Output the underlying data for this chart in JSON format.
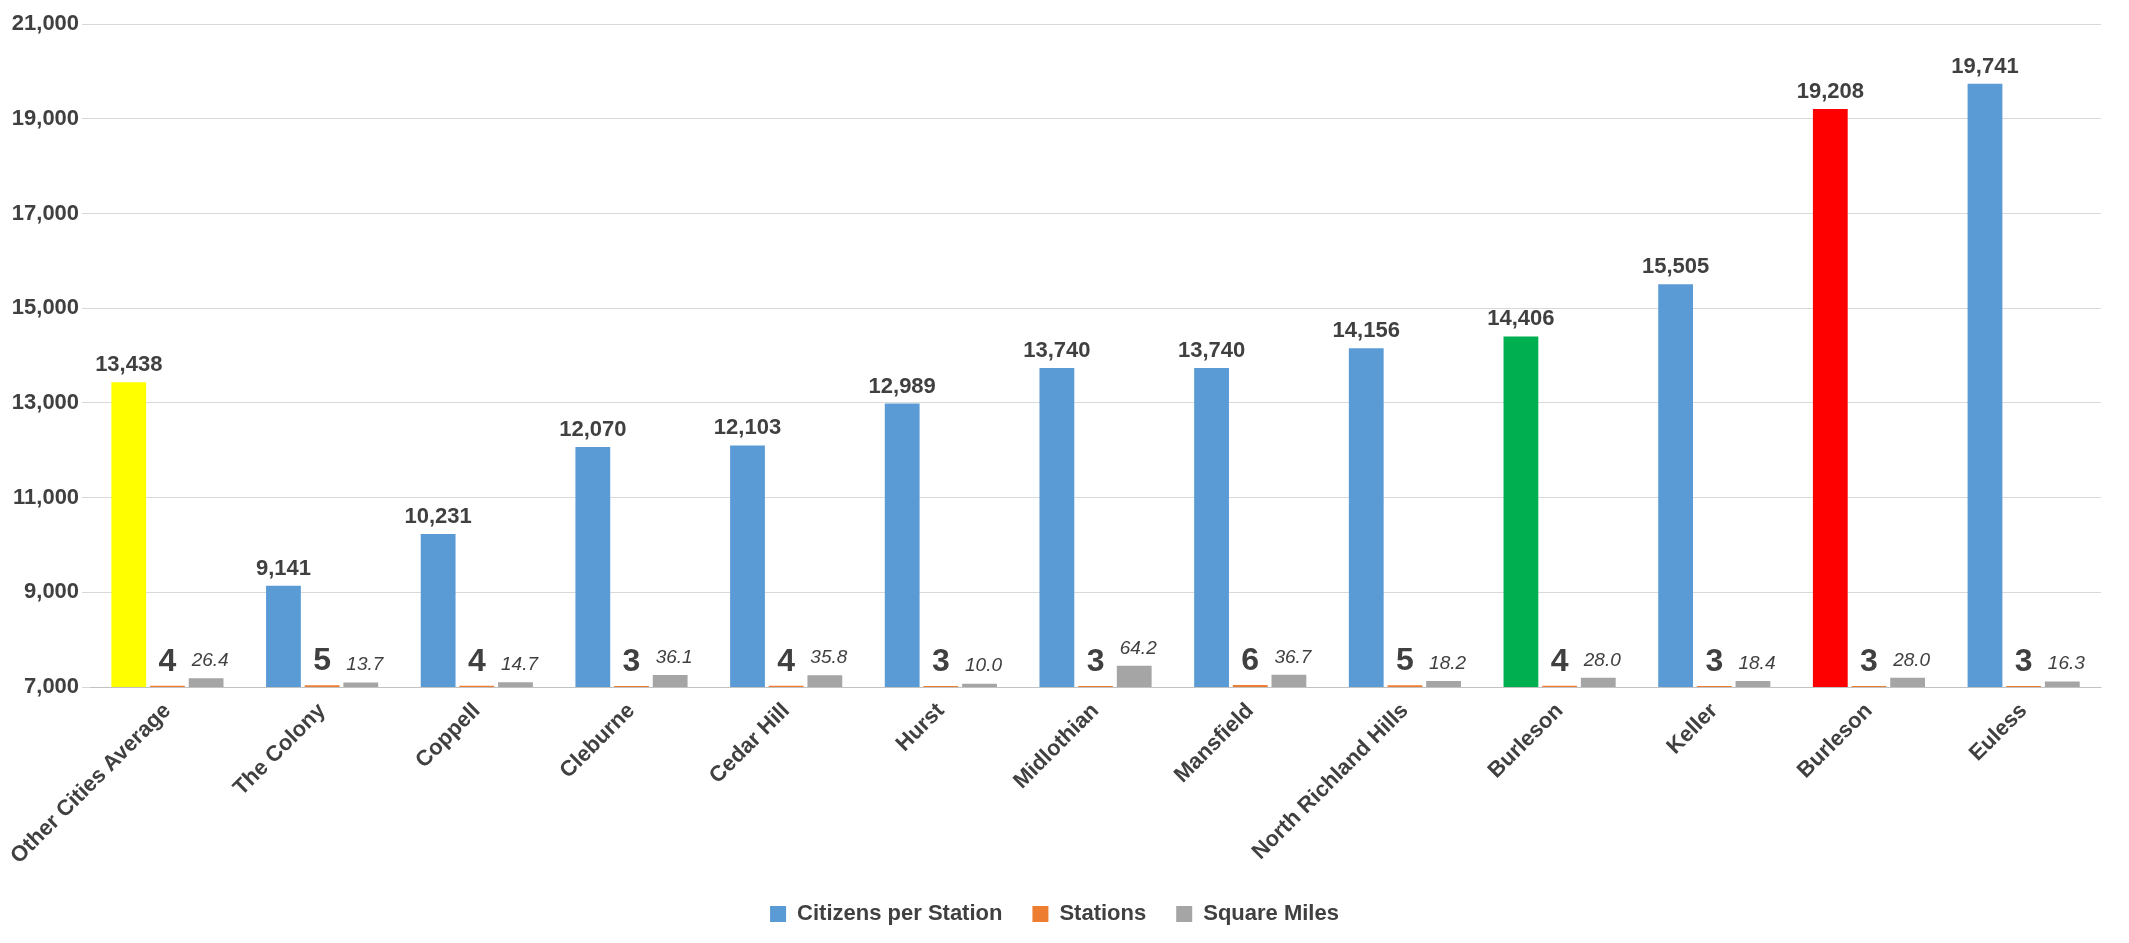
{
  "chart_data": {
    "type": "bar",
    "categories": [
      "Other Cities Average",
      "The Colony",
      "Coppell",
      "Cleburne",
      "Cedar Hill",
      "Hurst",
      "Midlothian",
      "Mansfield",
      "North Richland Hills",
      "Burleson",
      "Keller",
      "Burleson",
      "Euless"
    ],
    "series": [
      {
        "name": "Citizens per Station",
        "color": "#5b9bd5",
        "colors": [
          "#ffff00",
          "#5b9bd5",
          "#5b9bd5",
          "#5b9bd5",
          "#5b9bd5",
          "#5b9bd5",
          "#5b9bd5",
          "#5b9bd5",
          "#5b9bd5",
          "#00b050",
          "#5b9bd5",
          "#ff0000",
          "#5b9bd5"
        ],
        "values": [
          13438,
          9141,
          10231,
          12070,
          12103,
          12989,
          13740,
          13740,
          14156,
          14406,
          15505,
          19208,
          19741
        ],
        "value_labels": [
          "13,438",
          "9,141",
          "10,231",
          "12,070",
          "12,103",
          "12,989",
          "13,740",
          "13,740",
          "14,156",
          "14,406",
          "15,505",
          "19,208",
          "19,741"
        ]
      },
      {
        "name": "Stations",
        "color": "#ed7d31",
        "axis": "y2",
        "values": [
          4,
          5,
          4,
          3,
          4,
          3,
          3,
          6,
          5,
          4,
          3,
          3,
          3
        ],
        "value_labels": [
          "4",
          "5",
          "4",
          "3",
          "4",
          "3",
          "3",
          "6",
          "5",
          "4",
          "3",
          "3",
          "3"
        ]
      },
      {
        "name": "Square Miles",
        "color": "#a5a5a5",
        "axis": "y2",
        "values": [
          26.4,
          13.7,
          14.7,
          36.1,
          35.8,
          10.0,
          64.2,
          36.7,
          18.2,
          28.0,
          18.4,
          28.0,
          16.3
        ],
        "value_labels": [
          "26.4",
          "13.7",
          "14.7",
          "36.1",
          "35.8",
          "10.0",
          "64.2",
          "36.7",
          "18.2",
          "28.0",
          "18.4",
          "28.0",
          "16.3"
        ]
      }
    ],
    "ylim": [
      7000,
      21000
    ],
    "yticks": [
      {
        "value": 7000,
        "label": "7,000"
      },
      {
        "value": 9000,
        "label": "9,000"
      },
      {
        "value": 11000,
        "label": "11,000"
      },
      {
        "value": 13000,
        "label": "13,000"
      },
      {
        "value": 15000,
        "label": "15,000"
      },
      {
        "value": 17000,
        "label": "17,000"
      },
      {
        "value": 19000,
        "label": "19,000"
      },
      {
        "value": 21000,
        "label": "21,000"
      }
    ],
    "y2lim": [
      0,
      2000
    ],
    "grid": "y",
    "legend": "bottom"
  }
}
